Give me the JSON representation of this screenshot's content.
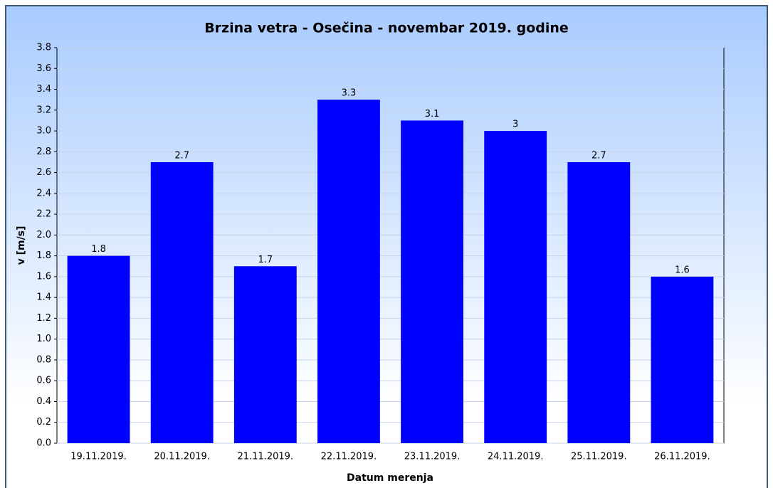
{
  "chart_data": {
    "type": "bar",
    "title": "Brzina vetra - Osečina - novembar 2019. godine",
    "x_label": "Datum merenja",
    "y_label": "v [m/s]",
    "categories": [
      "19.11.2019.",
      "20.11.2019.",
      "21.11.2019.",
      "22.11.2019.",
      "23.11.2019.",
      "24.11.2019.",
      "25.11.2019.",
      "26.11.2019."
    ],
    "values": [
      1.8,
      2.7,
      1.7,
      3.3,
      3.1,
      3,
      2.7,
      1.6
    ],
    "color": "#0000ff",
    "ylim": [
      0,
      3.8
    ],
    "yticks": [
      {
        "value": 0,
        "label": "0.0"
      },
      0.2,
      0.4,
      0.6,
      0.8,
      {
        "value": 1,
        "label": "1.0"
      },
      1.2,
      1.4,
      1.6,
      1.8,
      {
        "value": 2,
        "label": "2.0"
      },
      2.2,
      2.4,
      2.6,
      2.8,
      {
        "value": 3,
        "label": "3.0"
      },
      3.2,
      3.4,
      3.6,
      3.8
    ],
    "grid": true
  }
}
